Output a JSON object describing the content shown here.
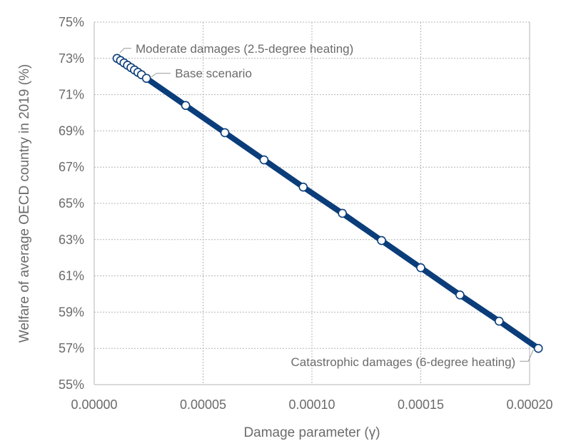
{
  "chart_data": {
    "type": "line",
    "xlabel": "Damage parameter (γ)",
    "ylabel": "Welfare of average OECD country in 2019 (%)",
    "xlim": [
      0,
      0.0002
    ],
    "ylim": [
      55,
      75
    ],
    "x_ticks": [
      "0.00000",
      "0.00005",
      "0.00010",
      "0.00015",
      "0.00020"
    ],
    "y_ticks": [
      "55%",
      "57%",
      "59%",
      "61%",
      "63%",
      "65%",
      "67%",
      "69%",
      "71%",
      "73%",
      "75%"
    ],
    "grid": true,
    "series": [
      {
        "color": "#0a3d7a",
        "points": [
          {
            "x": 1.05e-05,
            "y": 73.0
          },
          {
            "x": 1.21e-05,
            "y": 72.88
          },
          {
            "x": 1.37e-05,
            "y": 72.75
          },
          {
            "x": 1.53e-05,
            "y": 72.62
          },
          {
            "x": 1.69e-05,
            "y": 72.49
          },
          {
            "x": 1.85e-05,
            "y": 72.36
          },
          {
            "x": 2.01e-05,
            "y": 72.23
          },
          {
            "x": 2.17e-05,
            "y": 72.1
          },
          {
            "x": 2.4e-05,
            "y": 71.9
          },
          {
            "x": 4.2e-05,
            "y": 70.4
          },
          {
            "x": 6e-05,
            "y": 68.9
          },
          {
            "x": 7.8e-05,
            "y": 67.4
          },
          {
            "x": 9.6e-05,
            "y": 65.9
          },
          {
            "x": 0.000114,
            "y": 64.45
          },
          {
            "x": 0.000132,
            "y": 62.95
          },
          {
            "x": 0.00015,
            "y": 61.45
          },
          {
            "x": 0.000168,
            "y": 59.95
          },
          {
            "x": 0.000186,
            "y": 58.5
          },
          {
            "x": 0.000204,
            "y": 57.0
          }
        ]
      }
    ],
    "annotations": [
      {
        "text": "Moderate damages (2.5-degree heating)",
        "x": 1.05e-05,
        "y": 73.0
      },
      {
        "text": "Base scenario",
        "x": 2.4e-05,
        "y": 71.9
      },
      {
        "text": "Catastrophic damages (6-degree heating)",
        "x": 0.000204,
        "y": 57.0
      }
    ]
  }
}
